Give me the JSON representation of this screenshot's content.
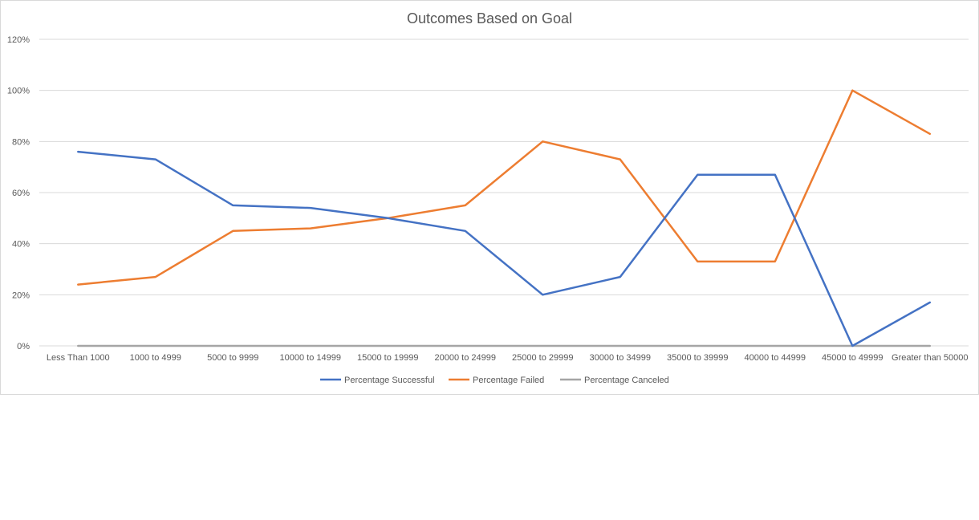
{
  "chart_data": {
    "type": "line",
    "title": "Outcomes Based on Goal",
    "xlabel": "",
    "ylabel": "",
    "ylim": [
      0,
      120
    ],
    "yticks": [
      "0%",
      "20%",
      "40%",
      "60%",
      "80%",
      "100%",
      "120%"
    ],
    "grid": true,
    "legend_position": "bottom",
    "categories": [
      "Less Than 1000",
      "1000 to 4999",
      "5000 to 9999",
      "10000 to 14999",
      "15000 to 19999",
      "20000 to 24999",
      "25000 to 29999",
      "30000 to 34999",
      "35000 to 39999",
      "40000 to 44999",
      "45000 to 49999",
      "Greater than 50000"
    ],
    "series": [
      {
        "name": "Percentage Successful",
        "color": "#4472c4",
        "values": [
          76,
          73,
          55,
          54,
          50,
          45,
          20,
          27,
          67,
          67,
          0,
          17
        ]
      },
      {
        "name": "Percentage Failed",
        "color": "#ed7d31",
        "values": [
          24,
          27,
          45,
          46,
          50,
          55,
          80,
          73,
          33,
          33,
          100,
          83
        ]
      },
      {
        "name": "Percentage Canceled",
        "color": "#a5a5a5",
        "values": [
          0,
          0,
          0,
          0,
          0,
          0,
          0,
          0,
          0,
          0,
          0,
          0
        ]
      }
    ]
  }
}
